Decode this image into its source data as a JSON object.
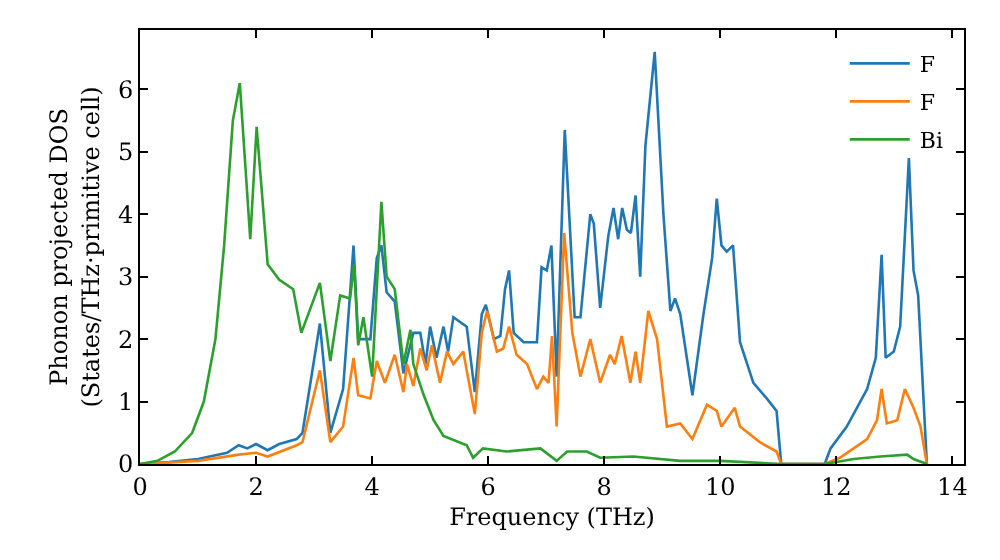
{
  "chart_data": {
    "type": "line",
    "xlabel": "Frequency (THz)",
    "ylabel": "Phonon projected DOS\n(States/THz·primitive cell)",
    "xlim": [
      0,
      14.2
    ],
    "xticks": [
      0,
      2,
      4,
      6,
      8,
      10,
      12,
      14
    ],
    "ylim": [
      0,
      6.95
    ],
    "yticks": [
      0,
      1,
      2,
      3,
      4,
      5,
      6
    ],
    "legend": "top right",
    "marker": "none",
    "line_style": "solid",
    "series": [
      {
        "name": "F",
        "color": "#1f77b4",
        "x": [
          0,
          0.5,
          1.0,
          1.5,
          1.7,
          1.85,
          2.0,
          2.2,
          2.4,
          2.7,
          2.8,
          3.1,
          3.28,
          3.5,
          3.68,
          3.76,
          3.97,
          4.08,
          4.16,
          4.25,
          4.39,
          4.54,
          4.71,
          4.83,
          4.92,
          5.0,
          5.11,
          5.23,
          5.31,
          5.4,
          5.63,
          5.77,
          5.89,
          5.96,
          6.1,
          6.21,
          6.29,
          6.36,
          6.44,
          6.61,
          6.84,
          6.92,
          7.01,
          7.09,
          7.18,
          7.32,
          7.49,
          7.59,
          7.76,
          7.82,
          7.93,
          8.07,
          8.16,
          8.24,
          8.31,
          8.39,
          8.46,
          8.54,
          8.62,
          8.71,
          8.87,
          9.02,
          9.14,
          9.22,
          9.31,
          9.52,
          9.71,
          9.86,
          9.94,
          10.02,
          10.11,
          10.22,
          10.34,
          10.57,
          10.8,
          10.97,
          11.05,
          11.8,
          11.9,
          12.18,
          12.53,
          12.68,
          12.78,
          12.85,
          12.99,
          13.1,
          13.25,
          13.33,
          13.41,
          13.56
        ],
        "values": [
          0,
          0.03,
          0.08,
          0.18,
          0.3,
          0.25,
          0.32,
          0.22,
          0.32,
          0.4,
          0.5,
          2.25,
          0.5,
          1.2,
          3.5,
          2.0,
          2.0,
          3.3,
          3.5,
          2.75,
          2.6,
          1.45,
          2.1,
          2.1,
          1.6,
          2.2,
          1.7,
          2.2,
          1.8,
          2.35,
          2.2,
          1.15,
          2.4,
          2.55,
          2.0,
          2.05,
          2.8,
          3.1,
          2.1,
          1.95,
          1.95,
          3.15,
          3.1,
          3.5,
          1.4,
          5.35,
          2.35,
          2.35,
          4.0,
          3.85,
          2.5,
          3.65,
          4.1,
          3.6,
          4.1,
          3.75,
          3.7,
          4.3,
          3.0,
          5.1,
          6.6,
          4.0,
          2.45,
          2.65,
          2.4,
          1.1,
          2.4,
          3.3,
          4.25,
          3.5,
          3.4,
          3.5,
          1.95,
          1.3,
          1.05,
          0.85,
          0,
          0,
          0.25,
          0.6,
          1.2,
          1.7,
          3.35,
          1.7,
          1.8,
          2.2,
          4.9,
          3.1,
          2.7,
          0
        ]
      },
      {
        "name": "F",
        "color": "#ff7f0e",
        "x": [
          0,
          1.0,
          1.7,
          2.0,
          2.2,
          2.7,
          2.8,
          3.1,
          3.28,
          3.5,
          3.68,
          3.76,
          3.97,
          4.08,
          4.22,
          4.39,
          4.54,
          4.6,
          4.71,
          4.83,
          4.94,
          5.03,
          5.17,
          5.29,
          5.4,
          5.57,
          5.77,
          5.89,
          5.98,
          6.15,
          6.26,
          6.36,
          6.49,
          6.67,
          6.84,
          6.95,
          7.04,
          7.1,
          7.18,
          7.31,
          7.45,
          7.59,
          7.76,
          7.93,
          8.1,
          8.18,
          8.3,
          8.45,
          8.54,
          8.62,
          8.76,
          8.91,
          9.08,
          9.31,
          9.52,
          9.77,
          9.94,
          10.02,
          10.25,
          10.34,
          10.68,
          10.97,
          11.05,
          11.8,
          12.06,
          12.53,
          12.7,
          12.78,
          12.87,
          13.05,
          13.18,
          13.33,
          13.45,
          13.56
        ],
        "values": [
          0,
          0.05,
          0.15,
          0.18,
          0.12,
          0.3,
          0.35,
          1.5,
          0.35,
          0.6,
          1.7,
          1.1,
          1.05,
          1.65,
          1.3,
          1.75,
          1.15,
          1.6,
          1.25,
          1.85,
          1.5,
          1.9,
          1.3,
          1.8,
          1.6,
          1.8,
          0.8,
          2.1,
          2.45,
          1.8,
          1.85,
          2.2,
          1.75,
          1.6,
          1.2,
          1.4,
          1.3,
          2.05,
          0.6,
          3.7,
          2.1,
          1.4,
          2.0,
          1.3,
          1.75,
          1.6,
          2.05,
          1.3,
          1.8,
          1.3,
          2.45,
          2.0,
          0.6,
          0.65,
          0.4,
          0.95,
          0.85,
          0.6,
          0.9,
          0.6,
          0.35,
          0.2,
          0,
          0,
          0.1,
          0.4,
          0.7,
          1.2,
          0.65,
          0.7,
          1.2,
          0.9,
          0.6,
          0
        ]
      },
      {
        "name": "Bi",
        "color": "#2ca02c",
        "x": [
          0,
          0.3,
          0.6,
          0.9,
          1.1,
          1.3,
          1.45,
          1.6,
          1.72,
          1.9,
          2.01,
          2.2,
          2.4,
          2.64,
          2.78,
          3.1,
          3.28,
          3.45,
          3.62,
          3.69,
          3.76,
          3.85,
          4.0,
          4.16,
          4.25,
          4.39,
          4.54,
          4.66,
          4.71,
          4.89,
          5.06,
          5.23,
          5.63,
          5.74,
          5.91,
          6.32,
          6.9,
          7.18,
          7.36,
          7.7,
          7.93,
          8.5,
          9.31,
          10.0,
          11.05,
          11.8,
          12.3,
          12.76,
          13.22,
          13.33,
          13.56
        ],
        "values": [
          0,
          0.05,
          0.2,
          0.5,
          1.0,
          2.0,
          3.5,
          5.5,
          6.1,
          3.6,
          5.4,
          3.2,
          2.95,
          2.8,
          2.1,
          2.9,
          1.65,
          2.7,
          2.65,
          3.2,
          1.9,
          2.35,
          1.4,
          4.2,
          3.0,
          2.8,
          1.6,
          2.15,
          1.6,
          1.1,
          0.7,
          0.45,
          0.3,
          0.1,
          0.25,
          0.2,
          0.25,
          0.05,
          0.2,
          0.2,
          0.1,
          0.12,
          0.05,
          0.05,
          0,
          0,
          0.08,
          0.12,
          0.15,
          0.08,
          0
        ]
      }
    ]
  }
}
